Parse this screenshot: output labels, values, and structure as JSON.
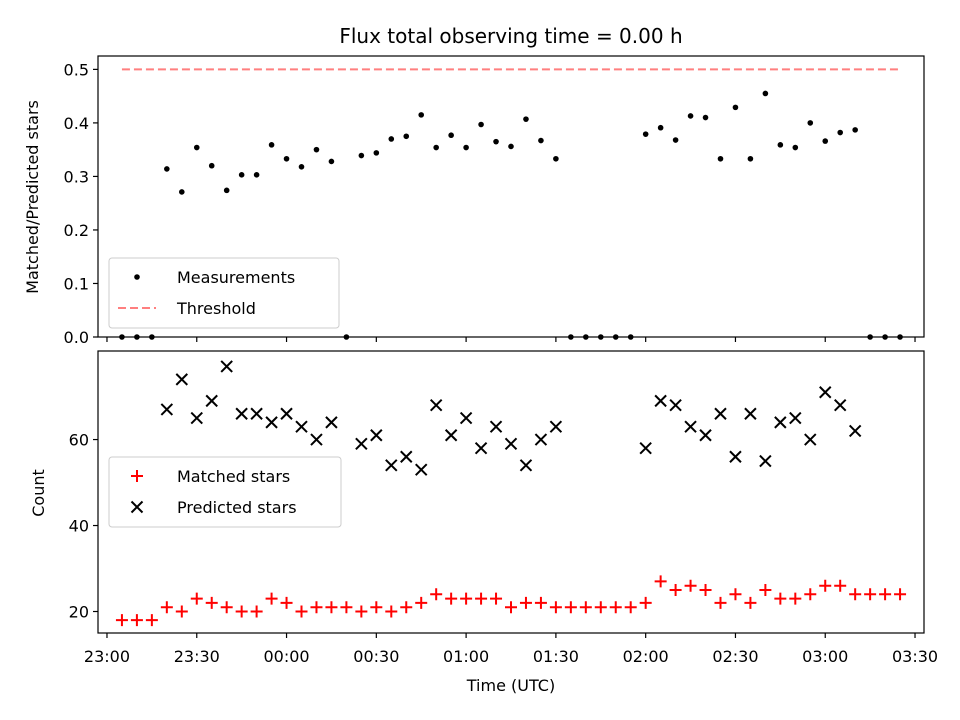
{
  "chart_data": [
    {
      "type": "scatter",
      "title": "Flux total observing time = 0.00 h",
      "xlabel": "",
      "ylabel": "Matched/Predicted stars",
      "xlim": [
        "22:57",
        "03:33"
      ],
      "ylim": [
        0,
        0.525
      ],
      "yticks": [
        0.0,
        0.1,
        0.2,
        0.3,
        0.4,
        0.5
      ],
      "ytick_labels": [
        "0.0",
        "0.1",
        "0.2",
        "0.3",
        "0.4",
        "0.5"
      ],
      "legend_position": "lower-left",
      "series": [
        {
          "name": "Measurements",
          "marker": "dot",
          "color": "#000000",
          "points": [
            [
              "23:05",
              0.0
            ],
            [
              "23:10",
              0.0
            ],
            [
              "23:15",
              0.0
            ],
            [
              "23:20",
              0.314
            ],
            [
              "23:25",
              0.271
            ],
            [
              "23:30",
              0.354
            ],
            [
              "23:35",
              0.32
            ],
            [
              "23:40",
              0.274
            ],
            [
              "23:45",
              0.303
            ],
            [
              "23:50",
              0.303
            ],
            [
              "23:55",
              0.359
            ],
            [
              "00:00",
              0.333
            ],
            [
              "00:05",
              0.318
            ],
            [
              "00:10",
              0.35
            ],
            [
              "00:15",
              0.328
            ],
            [
              "00:20",
              0.0
            ],
            [
              "00:25",
              0.339
            ],
            [
              "00:30",
              0.344
            ],
            [
              "00:35",
              0.37
            ],
            [
              "00:40",
              0.375
            ],
            [
              "00:45",
              0.415
            ],
            [
              "00:50",
              0.354
            ],
            [
              "00:55",
              0.377
            ],
            [
              "01:00",
              0.354
            ],
            [
              "01:05",
              0.397
            ],
            [
              "01:10",
              0.365
            ],
            [
              "01:15",
              0.356
            ],
            [
              "01:20",
              0.407
            ],
            [
              "01:25",
              0.367
            ],
            [
              "01:30",
              0.333
            ],
            [
              "01:35",
              0.0
            ],
            [
              "01:40",
              0.0
            ],
            [
              "01:45",
              0.0
            ],
            [
              "01:50",
              0.0
            ],
            [
              "01:55",
              0.0
            ],
            [
              "02:00",
              0.379
            ],
            [
              "02:05",
              0.391
            ],
            [
              "02:10",
              0.368
            ],
            [
              "02:15",
              0.413
            ],
            [
              "02:20",
              0.41
            ],
            [
              "02:25",
              0.333
            ],
            [
              "02:30",
              0.429
            ],
            [
              "02:35",
              0.333
            ],
            [
              "02:40",
              0.455
            ],
            [
              "02:45",
              0.359
            ],
            [
              "02:50",
              0.354
            ],
            [
              "02:55",
              0.4
            ],
            [
              "03:00",
              0.366
            ],
            [
              "03:05",
              0.382
            ],
            [
              "03:10",
              0.387
            ],
            [
              "03:15",
              0.0
            ],
            [
              "03:20",
              0.0
            ],
            [
              "03:25",
              0.0
            ]
          ]
        },
        {
          "name": "Threshold",
          "type": "line",
          "style": "dashed",
          "color": "#ff7f7f",
          "points": [
            [
              "23:05",
              0.5
            ],
            [
              "03:25",
              0.5
            ]
          ]
        }
      ]
    },
    {
      "type": "scatter",
      "title": "",
      "xlabel": "Time (UTC)",
      "ylabel": "Count",
      "xlim": [
        "22:57",
        "03:33"
      ],
      "ylim": [
        15,
        80.6
      ],
      "yticks": [
        20,
        40,
        60
      ],
      "ytick_labels": [
        "20",
        "40",
        "60"
      ],
      "xticks": [
        "23:00",
        "23:30",
        "00:00",
        "00:30",
        "01:00",
        "01:30",
        "02:00",
        "02:30",
        "03:00",
        "03:30"
      ],
      "xtick_labels": [
        "23:00",
        "23:30",
        "00:00",
        "00:30",
        "01:00",
        "01:30",
        "02:00",
        "02:30",
        "03:00",
        "03:30"
      ],
      "legend_position": "center-left",
      "series": [
        {
          "name": "Matched stars",
          "marker": "plus",
          "color": "#ff0000",
          "points": [
            [
              "23:05",
              18
            ],
            [
              "23:10",
              18
            ],
            [
              "23:15",
              18
            ],
            [
              "23:20",
              21
            ],
            [
              "23:25",
              20
            ],
            [
              "23:30",
              23
            ],
            [
              "23:35",
              22
            ],
            [
              "23:40",
              21
            ],
            [
              "23:45",
              20
            ],
            [
              "23:50",
              20
            ],
            [
              "23:55",
              23
            ],
            [
              "00:00",
              22
            ],
            [
              "00:05",
              20
            ],
            [
              "00:10",
              21
            ],
            [
              "00:15",
              21
            ],
            [
              "00:20",
              21
            ],
            [
              "00:25",
              20
            ],
            [
              "00:30",
              21
            ],
            [
              "00:35",
              20
            ],
            [
              "00:40",
              21
            ],
            [
              "00:45",
              22
            ],
            [
              "00:50",
              24
            ],
            [
              "00:55",
              23
            ],
            [
              "01:00",
              23
            ],
            [
              "01:05",
              23
            ],
            [
              "01:10",
              23
            ],
            [
              "01:15",
              21
            ],
            [
              "01:20",
              22
            ],
            [
              "01:25",
              22
            ],
            [
              "01:30",
              21
            ],
            [
              "01:35",
              21
            ],
            [
              "01:40",
              21
            ],
            [
              "01:45",
              21
            ],
            [
              "01:50",
              21
            ],
            [
              "01:55",
              21
            ],
            [
              "02:00",
              22
            ],
            [
              "02:05",
              27
            ],
            [
              "02:10",
              25
            ],
            [
              "02:15",
              26
            ],
            [
              "02:20",
              25
            ],
            [
              "02:25",
              22
            ],
            [
              "02:30",
              24
            ],
            [
              "02:35",
              22
            ],
            [
              "02:40",
              25
            ],
            [
              "02:45",
              23
            ],
            [
              "02:50",
              23
            ],
            [
              "02:55",
              24
            ],
            [
              "03:00",
              26
            ],
            [
              "03:05",
              26
            ],
            [
              "03:10",
              24
            ],
            [
              "03:15",
              24
            ],
            [
              "03:20",
              24
            ],
            [
              "03:25",
              24
            ]
          ]
        },
        {
          "name": "Predicted stars",
          "marker": "x",
          "color": "#000000",
          "points": [
            [
              "23:20",
              67
            ],
            [
              "23:25",
              74
            ],
            [
              "23:30",
              65
            ],
            [
              "23:35",
              69
            ],
            [
              "23:40",
              77
            ],
            [
              "23:45",
              66
            ],
            [
              "23:50",
              66
            ],
            [
              "23:55",
              64
            ],
            [
              "00:00",
              66
            ],
            [
              "00:05",
              63
            ],
            [
              "00:10",
              60
            ],
            [
              "00:15",
              64
            ],
            [
              "00:25",
              59
            ],
            [
              "00:30",
              61
            ],
            [
              "00:35",
              54
            ],
            [
              "00:40",
              56
            ],
            [
              "00:45",
              53
            ],
            [
              "00:50",
              68
            ],
            [
              "00:55",
              61
            ],
            [
              "01:00",
              65
            ],
            [
              "01:05",
              58
            ],
            [
              "01:10",
              63
            ],
            [
              "01:15",
              59
            ],
            [
              "01:20",
              54
            ],
            [
              "01:25",
              60
            ],
            [
              "01:30",
              63
            ],
            [
              "02:00",
              58
            ],
            [
              "02:05",
              69
            ],
            [
              "02:10",
              68
            ],
            [
              "02:15",
              63
            ],
            [
              "02:20",
              61
            ],
            [
              "02:25",
              66
            ],
            [
              "02:30",
              56
            ],
            [
              "02:35",
              66
            ],
            [
              "02:40",
              55
            ],
            [
              "02:45",
              64
            ],
            [
              "02:50",
              65
            ],
            [
              "02:55",
              60
            ],
            [
              "03:00",
              71
            ],
            [
              "03:05",
              68
            ],
            [
              "03:10",
              62
            ]
          ]
        }
      ]
    }
  ]
}
